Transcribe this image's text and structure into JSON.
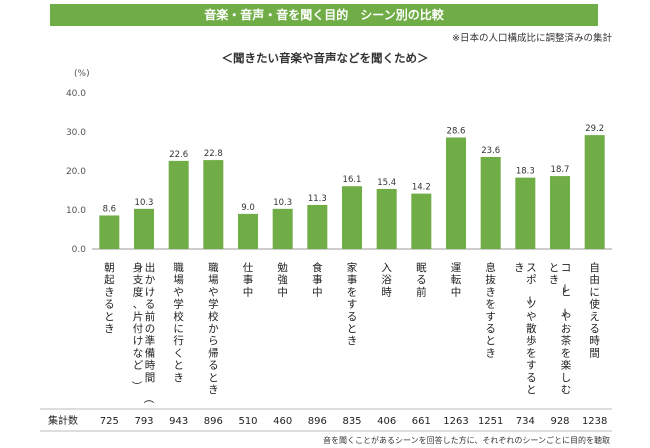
{
  "banner_title": "音楽・音声・音を聞く目的　シーン別の比較",
  "note": "※日本の人口構成比に調整済みの集計",
  "subtitle": "＜聞きたい音楽や音声などを聞くため＞",
  "unit": "(%)",
  "count_label": "集計数",
  "footnote": "音を聞くことがあるシーンを回答した方に、それぞれのシーンごとに目的を聴取",
  "colors": {
    "banner": "#70ad47",
    "bar": "#70ad47"
  },
  "chart_data": {
    "type": "bar",
    "title": "＜聞きたい音楽や音声などを聞くため＞",
    "ylabel": "(%)",
    "ylim": [
      0,
      40
    ],
    "yticks": [
      "0.0",
      "10.0",
      "20.0",
      "30.0",
      "40.0"
    ],
    "grid": false,
    "categories": [
      "朝起きるとき",
      "出かける前の準備時間（身支度、片付けなど）",
      "職場や学校に行くとき",
      "職場や学校から帰るとき",
      "仕事中",
      "勉強中",
      "食事中",
      "家事をするとき",
      "入浴時",
      "眠る前",
      "運転中",
      "息抜きをするとき",
      "スポーツや散歩をするとき",
      "コーヒーやお茶を楽しむとき",
      "自由に使える時間"
    ],
    "values": [
      8.6,
      10.3,
      22.6,
      22.8,
      9.0,
      10.3,
      11.3,
      16.1,
      15.4,
      14.2,
      28.6,
      23.6,
      18.3,
      18.7,
      29.2
    ],
    "value_labels": [
      "8.6",
      "10.3",
      "22.6",
      "22.8",
      "9.0",
      "10.3",
      "11.3",
      "16.1",
      "15.4",
      "14.2",
      "28.6",
      "23.6",
      "18.3",
      "18.7",
      "29.2"
    ],
    "counts": [
      "725",
      "793",
      "943",
      "896",
      "510",
      "460",
      "896",
      "835",
      "406",
      "661",
      "1263",
      "1251",
      "734",
      "928",
      "1238"
    ]
  }
}
